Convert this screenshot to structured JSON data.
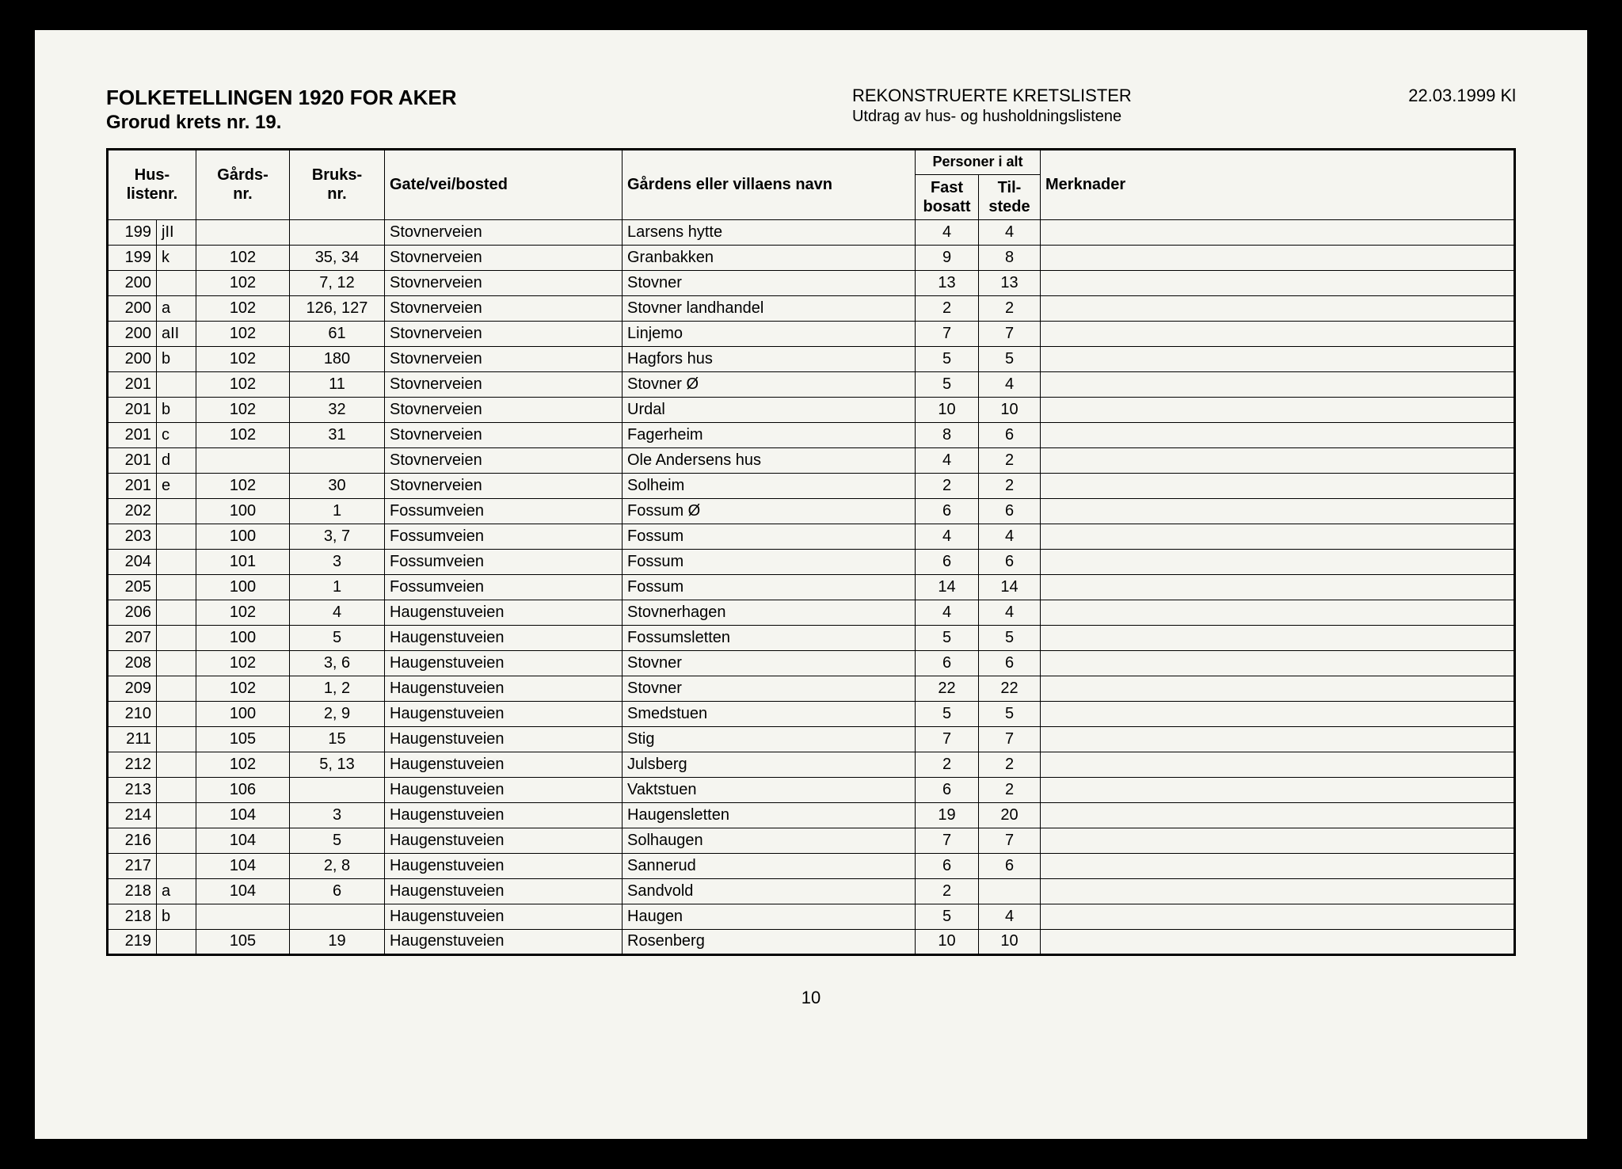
{
  "header": {
    "title_main": "FOLKETELLINGEN 1920 FOR AKER",
    "title_sub": "Grorud krets nr. 19.",
    "center_main": "REKONSTRUERTE KRETSLISTER",
    "center_sub": "Utdrag av hus- og husholdningslistene",
    "date": "22.03.1999 Kl"
  },
  "table": {
    "columns": {
      "personer_group": "Personer i alt",
      "hus": "Hus-\nlistenr.",
      "gards": "Gårds-\nnr.",
      "bruks": "Bruks-\nnr.",
      "gate": "Gate/vei/bosted",
      "navn": "Gårdens eller villaens navn",
      "fast": "Fast\nbosatt",
      "til": "Til-\nstede",
      "merk": "Merknader"
    },
    "rows": [
      {
        "h1": "199",
        "h2": "jII",
        "g": "",
        "b": "",
        "gate": "Stovnerveien",
        "navn": "Larsens hytte",
        "fast": "4",
        "til": "4",
        "m": ""
      },
      {
        "h1": "199",
        "h2": "k",
        "g": "102",
        "b": "35, 34",
        "gate": "Stovnerveien",
        "navn": "Granbakken",
        "fast": "9",
        "til": "8",
        "m": ""
      },
      {
        "h1": "200",
        "h2": "",
        "g": "102",
        "b": "7, 12",
        "gate": "Stovnerveien",
        "navn": "Stovner",
        "fast": "13",
        "til": "13",
        "m": ""
      },
      {
        "h1": "200",
        "h2": "a",
        "g": "102",
        "b": "126, 127",
        "gate": "Stovnerveien",
        "navn": "Stovner landhandel",
        "fast": "2",
        "til": "2",
        "m": ""
      },
      {
        "h1": "200",
        "h2": "aII",
        "g": "102",
        "b": "61",
        "gate": "Stovnerveien",
        "navn": "Linjemo",
        "fast": "7",
        "til": "7",
        "m": ""
      },
      {
        "h1": "200",
        "h2": "b",
        "g": "102",
        "b": "180",
        "gate": "Stovnerveien",
        "navn": "Hagfors hus",
        "fast": "5",
        "til": "5",
        "m": ""
      },
      {
        "h1": "201",
        "h2": "",
        "g": "102",
        "b": "11",
        "gate": "Stovnerveien",
        "navn": "Stovner Ø",
        "fast": "5",
        "til": "4",
        "m": ""
      },
      {
        "h1": "201",
        "h2": "b",
        "g": "102",
        "b": "32",
        "gate": "Stovnerveien",
        "navn": "Urdal",
        "fast": "10",
        "til": "10",
        "m": ""
      },
      {
        "h1": "201",
        "h2": "c",
        "g": "102",
        "b": "31",
        "gate": "Stovnerveien",
        "navn": "Fagerheim",
        "fast": "8",
        "til": "6",
        "m": ""
      },
      {
        "h1": "201",
        "h2": "d",
        "g": "",
        "b": "",
        "gate": "Stovnerveien",
        "navn": "Ole Andersens hus",
        "fast": "4",
        "til": "2",
        "m": ""
      },
      {
        "h1": "201",
        "h2": "e",
        "g": "102",
        "b": "30",
        "gate": "Stovnerveien",
        "navn": "Solheim",
        "fast": "2",
        "til": "2",
        "m": ""
      },
      {
        "h1": "202",
        "h2": "",
        "g": "100",
        "b": "1",
        "gate": "Fossumveien",
        "navn": "Fossum Ø",
        "fast": "6",
        "til": "6",
        "m": ""
      },
      {
        "h1": "203",
        "h2": "",
        "g": "100",
        "b": "3, 7",
        "gate": "Fossumveien",
        "navn": "Fossum",
        "fast": "4",
        "til": "4",
        "m": ""
      },
      {
        "h1": "204",
        "h2": "",
        "g": "101",
        "b": "3",
        "gate": "Fossumveien",
        "navn": "Fossum",
        "fast": "6",
        "til": "6",
        "m": ""
      },
      {
        "h1": "205",
        "h2": "",
        "g": "100",
        "b": "1",
        "gate": "Fossumveien",
        "navn": "Fossum",
        "fast": "14",
        "til": "14",
        "m": ""
      },
      {
        "h1": "206",
        "h2": "",
        "g": "102",
        "b": "4",
        "gate": "Haugenstuveien",
        "navn": "Stovnerhagen",
        "fast": "4",
        "til": "4",
        "m": ""
      },
      {
        "h1": "207",
        "h2": "",
        "g": "100",
        "b": "5",
        "gate": "Haugenstuveien",
        "navn": "Fossumsletten",
        "fast": "5",
        "til": "5",
        "m": ""
      },
      {
        "h1": "208",
        "h2": "",
        "g": "102",
        "b": "3, 6",
        "gate": "Haugenstuveien",
        "navn": "Stovner",
        "fast": "6",
        "til": "6",
        "m": ""
      },
      {
        "h1": "209",
        "h2": "",
        "g": "102",
        "b": "1, 2",
        "gate": "Haugenstuveien",
        "navn": "Stovner",
        "fast": "22",
        "til": "22",
        "m": ""
      },
      {
        "h1": "210",
        "h2": "",
        "g": "100",
        "b": "2, 9",
        "gate": "Haugenstuveien",
        "navn": "Smedstuen",
        "fast": "5",
        "til": "5",
        "m": ""
      },
      {
        "h1": "211",
        "h2": "",
        "g": "105",
        "b": "15",
        "gate": "Haugenstuveien",
        "navn": "Stig",
        "fast": "7",
        "til": "7",
        "m": ""
      },
      {
        "h1": "212",
        "h2": "",
        "g": "102",
        "b": "5, 13",
        "gate": "Haugenstuveien",
        "navn": "Julsberg",
        "fast": "2",
        "til": "2",
        "m": ""
      },
      {
        "h1": "213",
        "h2": "",
        "g": "106",
        "b": "",
        "gate": "Haugenstuveien",
        "navn": "Vaktstuen",
        "fast": "6",
        "til": "2",
        "m": ""
      },
      {
        "h1": "214",
        "h2": "",
        "g": "104",
        "b": "3",
        "gate": "Haugenstuveien",
        "navn": "Haugensletten",
        "fast": "19",
        "til": "20",
        "m": ""
      },
      {
        "h1": "216",
        "h2": "",
        "g": "104",
        "b": "5",
        "gate": "Haugenstuveien",
        "navn": "Solhaugen",
        "fast": "7",
        "til": "7",
        "m": ""
      },
      {
        "h1": "217",
        "h2": "",
        "g": "104",
        "b": "2, 8",
        "gate": "Haugenstuveien",
        "navn": "Sannerud",
        "fast": "6",
        "til": "6",
        "m": ""
      },
      {
        "h1": "218",
        "h2": "a",
        "g": "104",
        "b": "6",
        "gate": "Haugenstuveien",
        "navn": "Sandvold",
        "fast": "2",
        "til": "",
        "m": ""
      },
      {
        "h1": "218",
        "h2": "b",
        "g": "",
        "b": "",
        "gate": "Haugenstuveien",
        "navn": "Haugen",
        "fast": "5",
        "til": "4",
        "m": ""
      },
      {
        "h1": "219",
        "h2": "",
        "g": "105",
        "b": "19",
        "gate": "Haugenstuveien",
        "navn": "Rosenberg",
        "fast": "10",
        "til": "10",
        "m": ""
      }
    ]
  },
  "page_number": "10"
}
